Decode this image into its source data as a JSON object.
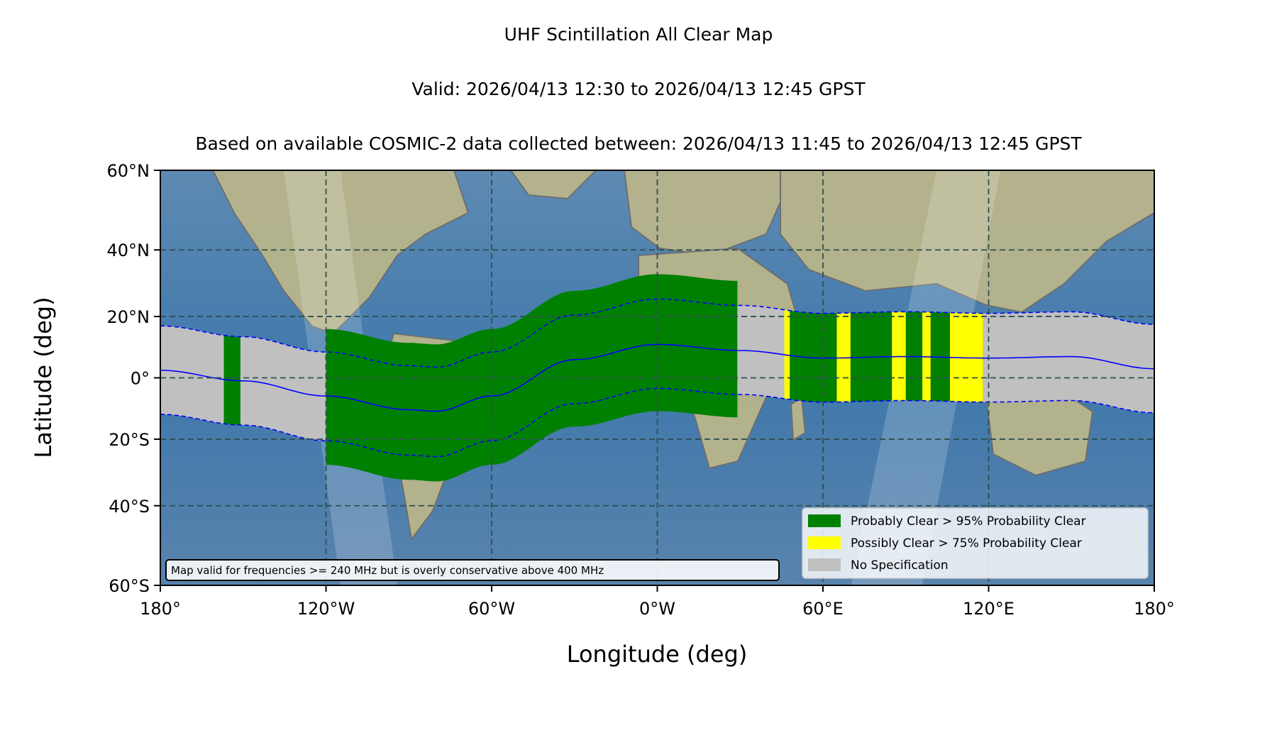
{
  "title": "UHF Scintillation All Clear Map",
  "subtitle_valid": "Valid: 2026/04/13 12:30 to 2026/04/13 12:45 GPST",
  "subtitle_based": "Based on available COSMIC-2 data collected between: 2026/04/13 11:45 to 2026/04/13 12:45 GPST",
  "note": "Map valid for frequencies >= 240 MHz but is overly conservative above 400 MHz",
  "colors": {
    "probably_clear": "#008000",
    "possibly_clear": "#ffff00",
    "no_spec": "#c0c0c0",
    "equator_line": "#0000ff",
    "ocean": "#4f7fa8",
    "land": "#b4b48a"
  },
  "chart_data": {
    "type": "map",
    "xlabel": "Longitude (deg)",
    "ylabel": "Latitude (deg)",
    "xlim": [
      -180,
      180
    ],
    "ylim": [
      -60,
      60
    ],
    "x_ticks": [
      {
        "value": -180,
        "label": "180°"
      },
      {
        "value": -120,
        "label": "120°W"
      },
      {
        "value": -60,
        "label": "60°W"
      },
      {
        "value": 0,
        "label": "0°W"
      },
      {
        "value": 60,
        "label": "60°E"
      },
      {
        "value": 120,
        "label": "120°E"
      },
      {
        "value": 180,
        "label": "180°"
      }
    ],
    "y_ticks": [
      {
        "value": 60,
        "label": "60°N"
      },
      {
        "value": 40,
        "label": "40°N"
      },
      {
        "value": 20,
        "label": "20°N"
      },
      {
        "value": 0,
        "label": "0°"
      },
      {
        "value": -20,
        "label": "20°S"
      },
      {
        "value": -40,
        "label": "40°S"
      },
      {
        "value": -60,
        "label": "60°S"
      }
    ],
    "grid": true,
    "legend_position": "lower-right",
    "legend": [
      {
        "label": "Probably Clear > 95% Probability Clear",
        "color": "#008000"
      },
      {
        "label": "Possibly Clear > 75% Probability Clear",
        "color": "#ffff00"
      },
      {
        "label": "No Specification",
        "color": "#c0c0c0"
      }
    ],
    "magnetic_equator": {
      "lon": [
        -180,
        -150,
        -120,
        -90,
        -80,
        -60,
        -30,
        0,
        30,
        60,
        90,
        120,
        150,
        180
      ],
      "lat": [
        2.5,
        -1,
        -6,
        -10.5,
        -11,
        -6,
        6,
        11,
        9,
        6.5,
        7,
        6.5,
        7,
        3
      ],
      "band_half_width_deg": 14.5,
      "inner_offset_deg": 14.5
    },
    "segments": [
      {
        "lon_start": -180,
        "lon_end": -157,
        "status": "no_spec"
      },
      {
        "lon_start": -157,
        "lon_end": -151,
        "status": "probably_clear"
      },
      {
        "lon_start": -151,
        "lon_end": -120,
        "status": "no_spec"
      },
      {
        "lon_start": -120,
        "lon_end": 29,
        "status": "probably_clear"
      },
      {
        "lon_start": 29,
        "lon_end": 46,
        "status": "no_spec"
      },
      {
        "lon_start": 46,
        "lon_end": 48,
        "status": "possibly_clear"
      },
      {
        "lon_start": 48,
        "lon_end": 65,
        "status": "probably_clear"
      },
      {
        "lon_start": 65,
        "lon_end": 70,
        "status": "possibly_clear"
      },
      {
        "lon_start": 70,
        "lon_end": 85,
        "status": "probably_clear"
      },
      {
        "lon_start": 85,
        "lon_end": 90,
        "status": "possibly_clear"
      },
      {
        "lon_start": 90,
        "lon_end": 96,
        "status": "probably_clear"
      },
      {
        "lon_start": 96,
        "lon_end": 99,
        "status": "possibly_clear"
      },
      {
        "lon_start": 99,
        "lon_end": 106,
        "status": "probably_clear"
      },
      {
        "lon_start": 106,
        "lon_end": 118,
        "status": "possibly_clear"
      },
      {
        "lon_start": 118,
        "lon_end": 180,
        "status": "no_spec"
      }
    ]
  }
}
